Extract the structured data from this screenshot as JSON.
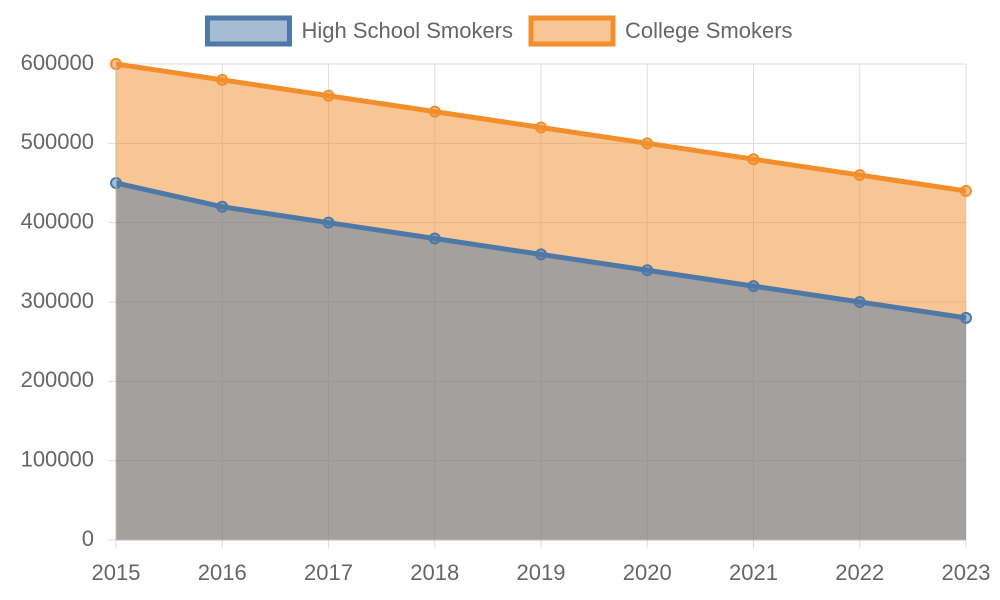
{
  "chart_data": {
    "type": "area",
    "categories": [
      "2015",
      "2016",
      "2017",
      "2018",
      "2019",
      "2020",
      "2021",
      "2022",
      "2023"
    ],
    "series": [
      {
        "name": "High School Smokers",
        "color": "#4e79a7",
        "values": [
          450000,
          420000,
          400000,
          380000,
          360000,
          340000,
          320000,
          300000,
          280000
        ]
      },
      {
        "name": "College Smokers",
        "color": "#f28e2b",
        "values": [
          600000,
          580000,
          560000,
          540000,
          520000,
          500000,
          480000,
          460000,
          440000
        ]
      }
    ],
    "ylim": [
      0,
      600000
    ],
    "yticks": [
      0,
      100000,
      200000,
      300000,
      400000,
      500000,
      600000
    ],
    "grid": true,
    "legend": "top"
  }
}
